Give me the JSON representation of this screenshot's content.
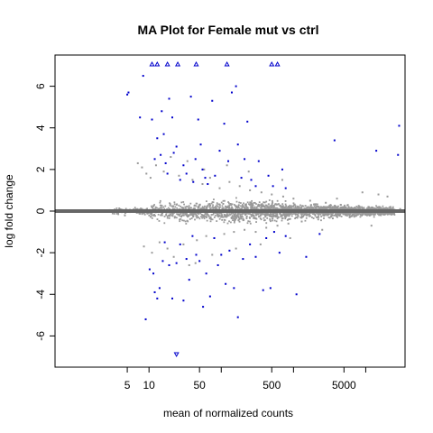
{
  "chart_data": {
    "type": "scatter",
    "title": "MA Plot for Female mut vs ctrl",
    "xlabel": "mean of normalized counts",
    "ylabel": "log fold change",
    "x_scale": "log10",
    "xlim": [
      0.5,
      35000
    ],
    "ylim": [
      -7.5,
      7.5
    ],
    "x_ticks": [
      5,
      10,
      50,
      500,
      5000
    ],
    "x_tick_labels": [
      "5",
      "10",
      "50",
      "500",
      "5000"
    ],
    "x_minor_ticks": [
      100,
      1000,
      10000
    ],
    "y_ticks": [
      -6,
      -4,
      -2,
      0,
      2,
      4,
      6
    ],
    "y_tick_labels": [
      "-6",
      "-4",
      "-2",
      "0",
      "2",
      "4",
      "6"
    ],
    "zero_line": {
      "y": 0,
      "color": "#666666"
    },
    "series": [
      {
        "role": "non-significant",
        "color": "#999999",
        "shape": "dot",
        "points": [
          [
            1.2,
            0.02
          ],
          [
            2.1,
            -0.03
          ],
          [
            3.0,
            0.04
          ],
          [
            4.2,
            -0.05
          ],
          [
            5.5,
            0.06
          ],
          [
            6.8,
            -0.08
          ],
          [
            8.0,
            0.1
          ],
          [
            9.5,
            -0.12
          ],
          [
            7.0,
            2.3
          ],
          [
            8.0,
            2.1
          ],
          [
            9.2,
            1.8
          ],
          [
            10.5,
            1.6
          ],
          [
            8.5,
            -1.7
          ],
          [
            11.0,
            -2.0
          ],
          [
            12.5,
            2.2
          ],
          [
            14.0,
            -1.5
          ],
          [
            16.0,
            1.9
          ],
          [
            18.0,
            -1.8
          ],
          [
            20.0,
            2.6
          ],
          [
            22.0,
            -2.2
          ],
          [
            26.0,
            1.7
          ],
          [
            30.0,
            -1.6
          ],
          [
            34.0,
            2.4
          ],
          [
            40.0,
            1.5
          ],
          [
            46.0,
            -1.4
          ],
          [
            55.0,
            1.3
          ],
          [
            62.0,
            -1.2
          ],
          [
            70.0,
            1.6
          ],
          [
            80.0,
            -1.3
          ],
          [
            95.0,
            1.1
          ],
          [
            110.0,
            -1.1
          ],
          [
            130.0,
            1.4
          ],
          [
            150.0,
            -1.0
          ],
          [
            180.0,
            1.2
          ],
          [
            210.0,
            -0.9
          ],
          [
            250.0,
            1.0
          ],
          [
            300.0,
            -1.0
          ],
          [
            360.0,
            0.9
          ],
          [
            420.0,
            -0.8
          ],
          [
            500.0,
            0.8
          ],
          [
            600.0,
            -0.7
          ],
          [
            720.0,
            0.7
          ],
          [
            850.0,
            -0.6
          ],
          [
            1000.0,
            0.6
          ],
          [
            1300.0,
            -0.5
          ],
          [
            1700.0,
            0.5
          ],
          [
            2200.0,
            -0.4
          ],
          [
            2800.0,
            0.4
          ],
          [
            3500.0,
            -0.35
          ],
          [
            4500.0,
            0.3
          ],
          [
            6000.0,
            -0.3
          ],
          [
            8000.0,
            0.25
          ],
          [
            11000.0,
            0.2
          ],
          [
            16000.0,
            0.15
          ],
          [
            22000.0,
            0.2
          ],
          [
            30000.0,
            0.1
          ],
          [
            9000.0,
            0.9
          ],
          [
            15000.0,
            0.8
          ],
          [
            20000.0,
            0.7
          ],
          [
            12000.0,
            -0.7
          ],
          [
            2500.0,
            -0.9
          ],
          [
            4000.0,
            0.6
          ],
          [
            700.0,
            1.5
          ],
          [
            900.0,
            -1.3
          ],
          [
            350.0,
            -1.6
          ],
          [
            240.0,
            1.9
          ],
          [
            160.0,
            -1.8
          ],
          [
            120.0,
            2.2
          ],
          [
            75.0,
            -2.1
          ],
          [
            58.0,
            2.0
          ],
          [
            44.0,
            -2.5
          ],
          [
            36.0,
            -2.6
          ]
        ]
      },
      {
        "role": "significant",
        "color": "#0000cc",
        "shape": "dot",
        "points": [
          [
            5.0,
            5.6
          ],
          [
            5.2,
            5.7
          ],
          [
            7.5,
            4.5
          ],
          [
            8.3,
            6.5
          ],
          [
            11.0,
            4.4
          ],
          [
            12.0,
            2.5
          ],
          [
            13.0,
            3.5
          ],
          [
            14.5,
            2.7
          ],
          [
            15.0,
            4.8
          ],
          [
            16.0,
            3.7
          ],
          [
            17.0,
            2.3
          ],
          [
            18.0,
            1.8
          ],
          [
            19.0,
            5.4
          ],
          [
            21.0,
            4.5
          ],
          [
            22.0,
            2.8
          ],
          [
            24.0,
            3.1
          ],
          [
            27.0,
            1.5
          ],
          [
            30.0,
            2.2
          ],
          [
            33.0,
            1.8
          ],
          [
            38.0,
            5.5
          ],
          [
            41.0,
            1.4
          ],
          [
            44.0,
            2.5
          ],
          [
            48.0,
            4.4
          ],
          [
            52.0,
            3.2
          ],
          [
            55.0,
            2.0
          ],
          [
            60.0,
            1.6
          ],
          [
            65.0,
            1.3
          ],
          [
            75.0,
            5.3
          ],
          [
            82.0,
            1.7
          ],
          [
            95.0,
            2.9
          ],
          [
            110.0,
            4.2
          ],
          [
            125.0,
            2.4
          ],
          [
            140.0,
            5.7
          ],
          [
            160.0,
            6.0
          ],
          [
            170.0,
            3.2
          ],
          [
            190.0,
            1.6
          ],
          [
            210.0,
            2.5
          ],
          [
            230.0,
            4.3
          ],
          [
            260.0,
            1.5
          ],
          [
            300.0,
            1.2
          ],
          [
            330.0,
            2.4
          ],
          [
            450.0,
            1.7
          ],
          [
            520.0,
            1.2
          ],
          [
            700.0,
            2.0
          ],
          [
            780.0,
            1.1
          ],
          [
            3700.0,
            3.4
          ],
          [
            14000.0,
            2.9
          ],
          [
            28000.0,
            2.7
          ],
          [
            29000.0,
            4.1
          ],
          [
            9.0,
            -5.2
          ],
          [
            10.2,
            -2.8
          ],
          [
            11.5,
            -3.0
          ],
          [
            12.0,
            -3.9
          ],
          [
            13.0,
            -4.2
          ],
          [
            14.0,
            -3.7
          ],
          [
            15.5,
            -2.4
          ],
          [
            16.5,
            -1.5
          ],
          [
            19.0,
            -2.6
          ],
          [
            21.0,
            -4.2
          ],
          [
            24.0,
            -2.5
          ],
          [
            27.0,
            -1.6
          ],
          [
            30.0,
            -4.3
          ],
          [
            33.0,
            -2.3
          ],
          [
            36.0,
            -3.3
          ],
          [
            40.0,
            -1.2
          ],
          [
            45.0,
            -2.1
          ],
          [
            50.0,
            -2.4
          ],
          [
            56.0,
            -4.6
          ],
          [
            62.0,
            -3.0
          ],
          [
            70.0,
            -4.1
          ],
          [
            80.0,
            -1.3
          ],
          [
            90.0,
            -2.6
          ],
          [
            100.0,
            -2.1
          ],
          [
            115.0,
            -3.5
          ],
          [
            130.0,
            -1.9
          ],
          [
            150.0,
            -3.7
          ],
          [
            170.0,
            -5.1
          ],
          [
            200.0,
            -2.3
          ],
          [
            250.0,
            -1.6
          ],
          [
            300.0,
            -2.2
          ],
          [
            380.0,
            -3.8
          ],
          [
            420.0,
            -1.3
          ],
          [
            480.0,
            -3.7
          ],
          [
            540.0,
            -1.0
          ],
          [
            640.0,
            -2.0
          ],
          [
            780.0,
            -1.2
          ],
          [
            1100.0,
            -4.0
          ],
          [
            1500.0,
            -2.2
          ],
          [
            2300.0,
            -1.1
          ]
        ]
      },
      {
        "role": "significant-out-of-range",
        "color": "#0000cc",
        "shape": "triangle",
        "points": [
          [
            11.0,
            7.5
          ],
          [
            13.0,
            7.5
          ],
          [
            18.0,
            7.5
          ],
          [
            25.0,
            7.5
          ],
          [
            45.0,
            7.5
          ],
          [
            120.0,
            7.5
          ],
          [
            500.0,
            7.5
          ],
          [
            600.0,
            7.5
          ],
          [
            24.0,
            -7.5
          ]
        ]
      }
    ]
  }
}
